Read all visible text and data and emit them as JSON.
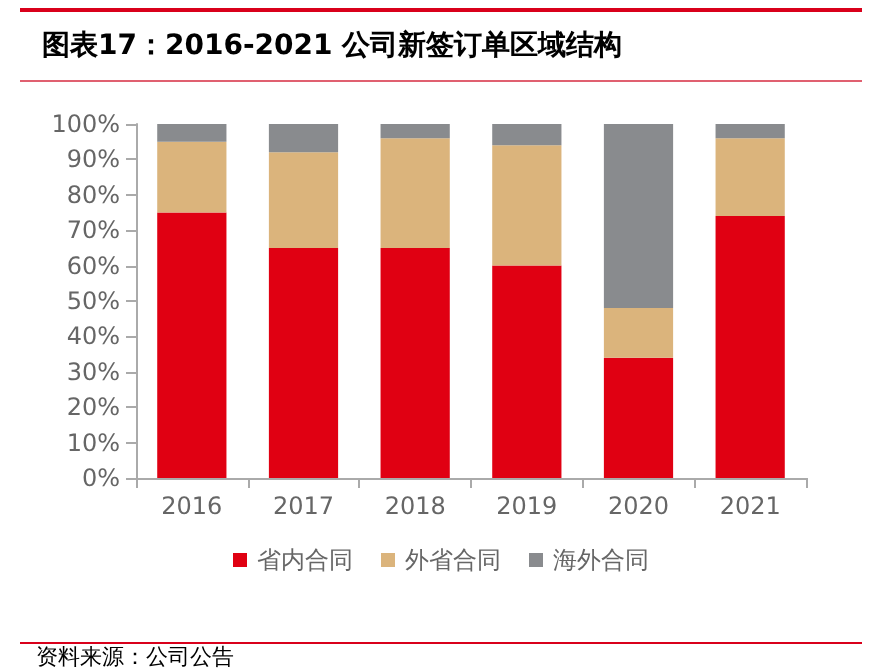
{
  "chart_data": {
    "type": "bar",
    "title": "图表17：2016-2021 公司新签订单区域结构",
    "categories": [
      "2016",
      "2017",
      "2018",
      "2019",
      "2020",
      "2021"
    ],
    "stacked": true,
    "series": [
      {
        "name": "省内合同",
        "color": "#e00012",
        "values": [
          75,
          65,
          65,
          60,
          34,
          74
        ]
      },
      {
        "name": "外省合同",
        "color": "#dbb47c",
        "values": [
          20,
          27,
          31,
          34,
          14,
          22
        ]
      },
      {
        "name": "海外合同",
        "color": "#898b8e",
        "values": [
          5,
          8,
          4,
          6,
          52,
          4
        ]
      }
    ],
    "ylim": [
      0,
      100
    ],
    "yticks": [
      {
        "value": 0,
        "label": "0%"
      },
      {
        "value": 10,
        "label": "10%"
      },
      {
        "value": 20,
        "label": "20%"
      },
      {
        "value": 30,
        "label": "30%"
      },
      {
        "value": 40,
        "label": "40%"
      },
      {
        "value": 50,
        "label": "50%"
      },
      {
        "value": 60,
        "label": "60%"
      },
      {
        "value": 70,
        "label": "70%"
      },
      {
        "value": 80,
        "label": "80%"
      },
      {
        "value": 90,
        "label": "90%"
      },
      {
        "value": 100,
        "label": "100%"
      }
    ],
    "grid": false,
    "legend": "bottom",
    "annotations": [
      "资料来源：公司公告"
    ]
  }
}
